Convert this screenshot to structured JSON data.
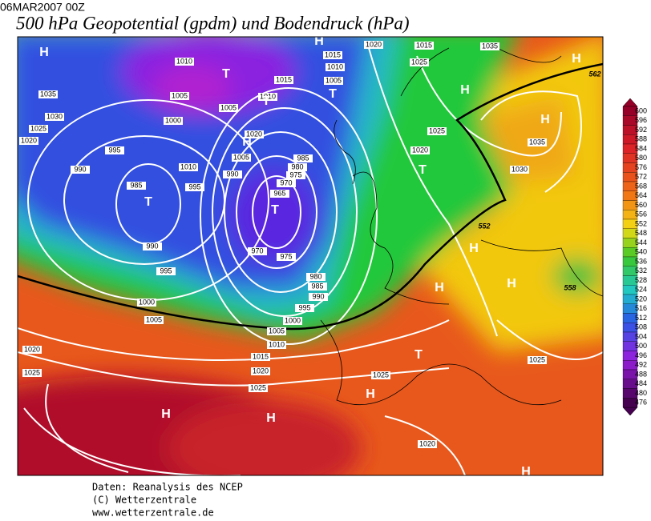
{
  "header": {
    "date": "06MAR2007 00Z",
    "title": "500 hPa Geopotential (gpdm) und Bodendruck (hPa)"
  },
  "legend": {
    "levels": [
      600,
      596,
      592,
      588,
      584,
      580,
      576,
      572,
      568,
      564,
      560,
      556,
      552,
      548,
      544,
      540,
      536,
      532,
      528,
      524,
      520,
      516,
      512,
      508,
      504,
      500,
      496,
      492,
      488,
      484,
      480,
      476
    ]
  },
  "map": {
    "isobar_labels": [
      1010,
      1005,
      1000,
      995,
      990,
      985,
      990,
      995,
      1000,
      1005,
      1035,
      1030,
      1025,
      1020,
      1020,
      1005,
      1010,
      1015,
      1020,
      1005,
      1010,
      990,
      995,
      985,
      980,
      975,
      970,
      965,
      970,
      975,
      980,
      985,
      990,
      995,
      1000,
      1005,
      1010,
      1015,
      1020,
      1025,
      1025,
      1020,
      1025,
      1030,
      1035,
      1020,
      1025,
      1005,
      1010,
      1015,
      1020,
      1015,
      1025,
      1035,
      1025
    ],
    "height_labels": [
      552,
      558,
      562
    ],
    "centers": [
      "H",
      "T",
      "T",
      "T",
      "H",
      "T",
      "T",
      "H",
      "H",
      "H",
      "T",
      "H",
      "H",
      "H",
      "T",
      "H",
      "H",
      "H",
      "H",
      "H"
    ]
  },
  "footer": {
    "lines": [
      "Daten: Reanalysis des NCEP",
      "(C) Wetterzentrale",
      "www.wetterzentrale.de"
    ]
  }
}
